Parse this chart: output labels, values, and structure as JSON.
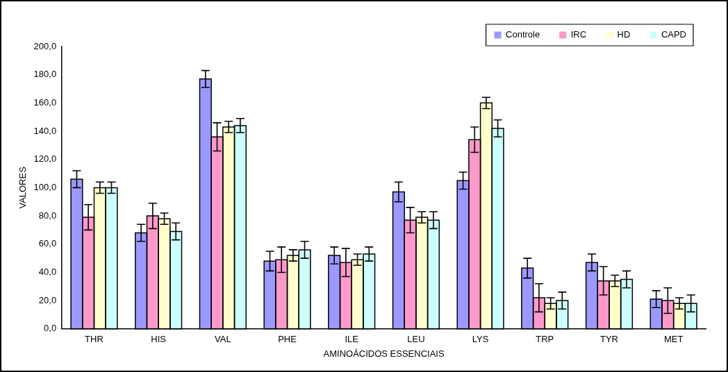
{
  "chart_data": {
    "type": "bar",
    "xlabel": "AMINOÁCIDOS ESSENCIAIS",
    "ylabel": "VALORES",
    "categories": [
      "THR",
      "HIS",
      "VAL",
      "PHE",
      "ILE",
      "LEU",
      "LYS",
      "TRP",
      "TYR",
      "MET"
    ],
    "series": [
      {
        "name": "Controle",
        "color": "#9999ff",
        "values": [
          106,
          68,
          177,
          48,
          52,
          97,
          105,
          43,
          47,
          21
        ],
        "errors": [
          6,
          6,
          6,
          7,
          6,
          7,
          6,
          7,
          6,
          6
        ]
      },
      {
        "name": "IRC",
        "color": "#ff99cc",
        "values": [
          79,
          80,
          136,
          49,
          47,
          77,
          134,
          22,
          34,
          20
        ],
        "errors": [
          9,
          9,
          10,
          9,
          10,
          9,
          9,
          10,
          10,
          9
        ]
      },
      {
        "name": "HD",
        "color": "#ffffcc",
        "values": [
          100,
          78,
          143,
          52,
          49,
          79,
          160,
          18,
          34,
          18
        ],
        "errors": [
          4,
          4,
          4,
          4,
          4,
          4,
          4,
          4,
          4,
          4
        ]
      },
      {
        "name": "CAPD",
        "color": "#ccffff",
        "values": [
          100,
          69,
          144,
          56,
          53,
          77,
          142,
          20,
          35,
          18
        ],
        "errors": [
          4,
          6,
          5,
          6,
          5,
          6,
          6,
          6,
          6,
          6
        ]
      }
    ],
    "ylim": [
      0,
      200
    ],
    "yticks": [
      {
        "value": 0,
        "label": "0,0"
      },
      {
        "value": 20,
        "label": "20,0"
      },
      {
        "value": 40,
        "label": "40,0"
      },
      {
        "value": 60,
        "label": "60,0"
      },
      {
        "value": 80,
        "label": "80,0"
      },
      {
        "value": 100,
        "label": "100,0"
      },
      {
        "value": 120,
        "label": "120,0"
      },
      {
        "value": 140,
        "label": "140,0"
      },
      {
        "value": 160,
        "label": "160,0"
      },
      {
        "value": 180,
        "label": "180,0"
      },
      {
        "value": 200,
        "label": "200,0"
      }
    ],
    "grid": false,
    "legend": "top right"
  }
}
